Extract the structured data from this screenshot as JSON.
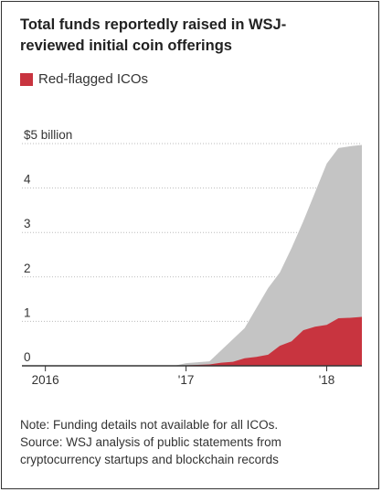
{
  "header": {
    "title_line1": "Total funds reportedly raised in WSJ-",
    "title_line2": "reviewed initial coin offerings"
  },
  "legend": {
    "label": "Red-flagged ICOs",
    "color": "#c8343f"
  },
  "colors": {
    "total_area": "#c4c4c4",
    "red_flagged_area": "#c8343f",
    "axis": "#333333",
    "grid": "#bbbbbb",
    "text": "#333333"
  },
  "footer": {
    "note_line1": "Note: Funding details not available for all ICOs.",
    "note_line2": "Source: WSJ analysis of public statements from",
    "note_line3": "cryptocurrency startups and blockchain records"
  },
  "chart_data": {
    "type": "area",
    "title": "Total funds reportedly raised in WSJ-reviewed initial coin offerings",
    "ylabel": "",
    "xlabel": "",
    "ylim": [
      0,
      5
    ],
    "xlim": [
      "2015-11",
      "2018-04"
    ],
    "grid": "horizontal",
    "legend": "top-left",
    "y_ticks": [
      {
        "value": 0,
        "label": "0"
      },
      {
        "value": 1,
        "label": "1"
      },
      {
        "value": 2,
        "label": "2"
      },
      {
        "value": 3,
        "label": "3"
      },
      {
        "value": 4,
        "label": "4"
      },
      {
        "value": 5,
        "label": "$5 billion"
      }
    ],
    "x_ticks": [
      {
        "value": "2016-01",
        "label": "2016"
      },
      {
        "value": "2017-01",
        "label": "'17"
      },
      {
        "value": "2018-01",
        "label": "'18"
      }
    ],
    "x": [
      "2016-12",
      "2017-01",
      "2017-02",
      "2017-03",
      "2017-04",
      "2017-05",
      "2017-06",
      "2017-07",
      "2017-08",
      "2017-09",
      "2017-10",
      "2017-11",
      "2017-12",
      "2018-01",
      "2018-02",
      "2018-03",
      "2018-04"
    ],
    "series": [
      {
        "name": "Total",
        "values": [
          0.0,
          0.06,
          0.08,
          0.1,
          0.35,
          0.6,
          0.85,
          1.3,
          1.75,
          2.1,
          2.65,
          3.25,
          3.9,
          4.55,
          4.9,
          4.94,
          4.97
        ]
      },
      {
        "name": "Red-flagged ICOs",
        "values": [
          0.0,
          0.01,
          0.02,
          0.03,
          0.07,
          0.09,
          0.17,
          0.2,
          0.25,
          0.45,
          0.55,
          0.8,
          0.88,
          0.92,
          1.07,
          1.08,
          1.1
        ]
      }
    ]
  }
}
